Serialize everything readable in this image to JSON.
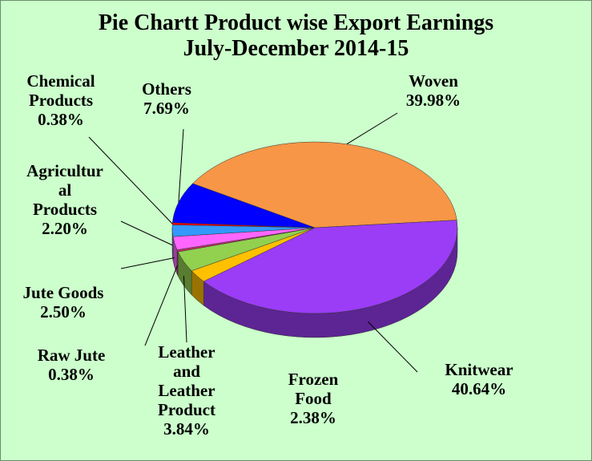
{
  "chart_data": {
    "type": "pie3d",
    "title": "Pie Chartt Product wise Export Earnings\nJuly-December 2014-15",
    "categories": [
      "Woven",
      "Knitwear",
      "Frozen\nFood",
      "Leather\nand\nLeather\nProduct",
      "Raw Jute",
      "Jute Goods",
      "Agricultur\nal\nProducts",
      "Chemical\nProducts",
      "Others"
    ],
    "values": [
      39.98,
      40.64,
      2.38,
      3.84,
      0.38,
      2.5,
      2.2,
      0.38,
      7.69
    ],
    "value_labels": [
      "39.98%",
      "40.64%",
      "2.38%",
      "3.84%",
      "0.38%",
      "2.50%",
      "2.20%",
      "0.38%",
      "7.69%"
    ],
    "colors": [
      "#f79646",
      "#9b3cf7",
      "#ffc000",
      "#92d050",
      "#c0306a",
      "#ff66ff",
      "#3399ff",
      "#ff0000",
      "#0000ff"
    ]
  }
}
